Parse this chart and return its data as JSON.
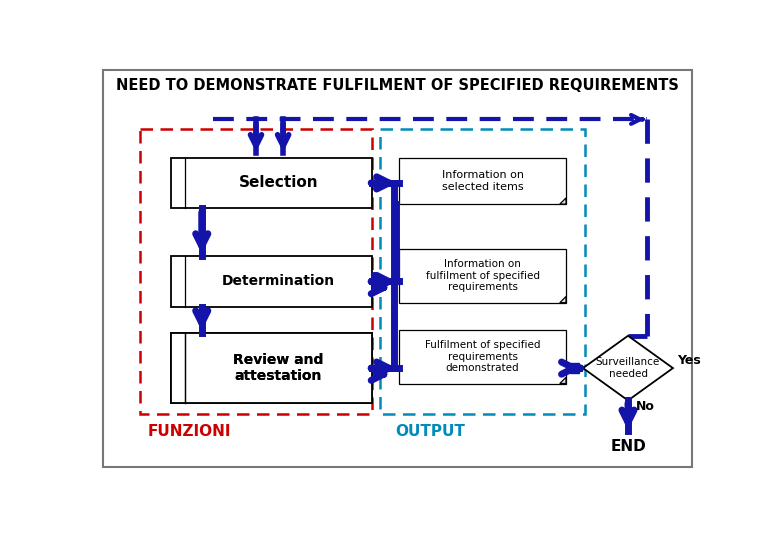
{
  "title": "NEED TO DEMONSTRATE FULFILMENT OF SPECIFIED REQUIREMENTS",
  "title_fontsize": 10.5,
  "dark_blue": "#1414aa",
  "red": "#cc0000",
  "cyan": "#008bbb",
  "funzioni_label": "FUNZIONI",
  "output_label": "OUTPUT",
  "end_label": "END",
  "yes_label": "Yes",
  "no_label": "No",
  "surveillance_label": "Surveillance\nneeded",
  "sel_label": "Selection",
  "det_label": "Determination",
  "rev_label": "Review and\nattestation",
  "out1_label": "Information on\nselected items",
  "out2_label": "Information on\nfulfilment of specified\nrequirements",
  "out3_label": "Fulfilment of specified\nrequirements\ndemonstrated"
}
